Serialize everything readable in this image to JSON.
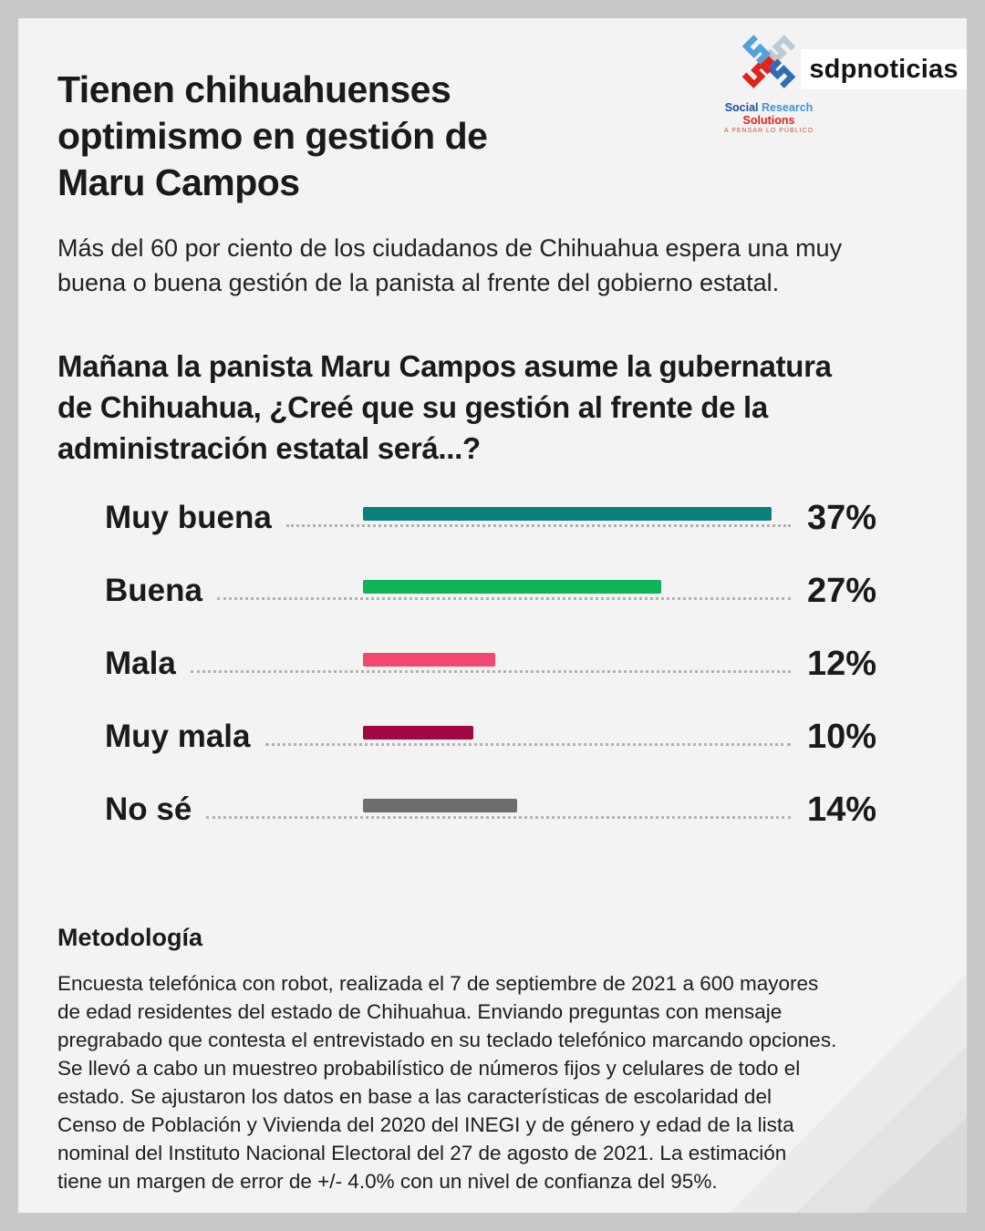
{
  "header": {
    "title": "Tienen chihuahuenses\noptimismo en gestión de\nMaru Campos",
    "logos": {
      "srs": {
        "words": [
          "Social",
          "Research",
          "Solutions"
        ],
        "tagline": "A PENSAR LO PÚBLICO"
      },
      "sdp": "sdpnoticias"
    }
  },
  "subtitle": "Más del 60 por ciento de los ciudadanos de Chihuahua espera una muy\nbuena o buena gestión de la panista al frente del gobierno estatal.",
  "question": "Mañana la panista Maru Campos asume la gubernatura\nde Chihuahua, ¿Creé que su gestión al frente de la\nadministración estatal será...?",
  "chart_data": {
    "type": "bar",
    "orientation": "horizontal",
    "title": "Mañana la panista Maru Campos asume la gubernatura de Chihuahua, ¿Creé que su gestión al frente de la administración estatal será...?",
    "categories": [
      "Muy buena",
      "Buena",
      "Mala",
      "Muy mala",
      "No sé"
    ],
    "values": [
      37,
      27,
      12,
      10,
      14
    ],
    "unit": "%",
    "colors": [
      "#0a7f7b",
      "#10b356",
      "#f0486e",
      "#a30743",
      "#6d6d6d"
    ],
    "xlim": [
      0,
      40
    ],
    "grid": false,
    "value_labels": "right"
  },
  "methodology": {
    "heading": "Metodología",
    "body": "Encuesta telefónica con robot, realizada el 7 de septiembre de 2021 a 600 mayores\nde edad residentes del estado de Chihuahua. Enviando preguntas con mensaje\npregrabado que contesta el entrevistado en su teclado telefónico marcando opciones.\nSe llevó a cabo un muestreo probabilístico de números fijos y celulares de todo el\nestado. Se ajustaron los datos en base a las características de escolaridad del\nCenso de Población y Vivienda del 2020 del INEGI y de género y edad de la lista\nnominal del Instituto Nacional Electoral del 27 de agosto de 2021. La estimación\ntiene un margen de error de +/- 4.0% con un nivel de confianza del 95%."
  }
}
